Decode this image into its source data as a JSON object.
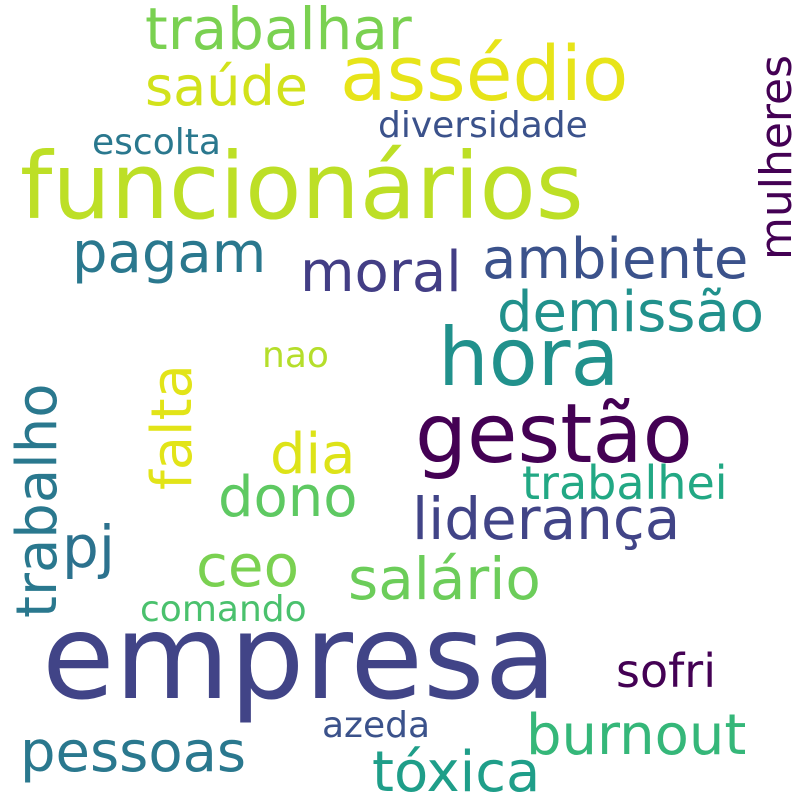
{
  "words": {
    "funcionarios": {
      "text": "funcionários",
      "color": "#bddf26"
    },
    "empresa": {
      "text": "empresa",
      "color": "#414487"
    },
    "gestao": {
      "text": "gestão",
      "color": "#440154"
    },
    "hora": {
      "text": "hora",
      "color": "#21918c"
    },
    "assedio": {
      "text": "assédio",
      "color": "#e7e419"
    },
    "trabalhar": {
      "text": "trabalhar",
      "color": "#7ad151"
    },
    "saude": {
      "text": "saúde",
      "color": "#d2e21b"
    },
    "diversidade": {
      "text": "diversidade",
      "color": "#3b528b"
    },
    "escolta": {
      "text": "escolta",
      "color": "#2a788e"
    },
    "mulheres": {
      "text": "mulheres",
      "color": "#440154"
    },
    "pagam": {
      "text": "pagam",
      "color": "#2a788e"
    },
    "moral": {
      "text": "moral",
      "color": "#433e85"
    },
    "ambiente": {
      "text": "ambiente",
      "color": "#3b528b"
    },
    "demissao": {
      "text": "demissão",
      "color": "#21918c"
    },
    "trabalho": {
      "text": "trabalho",
      "color": "#2a788e"
    },
    "falta": {
      "text": "falta",
      "color": "#e2e418"
    },
    "nao": {
      "text": "nao",
      "color": "#b5de2b"
    },
    "dia": {
      "text": "dia",
      "color": "#dde318"
    },
    "dono": {
      "text": "dono",
      "color": "#5ec962"
    },
    "trabalhei": {
      "text": "trabalhei",
      "color": "#22a884"
    },
    "lideranca": {
      "text": "liderança",
      "color": "#414487"
    },
    "pj": {
      "text": "pj",
      "color": "#2c728e"
    },
    "ceo": {
      "text": "ceo",
      "color": "#7ad151"
    },
    "salario": {
      "text": "salário",
      "color": "#6ccd5a"
    },
    "comando": {
      "text": "comando",
      "color": "#4ac16d"
    },
    "sofri": {
      "text": "sofri",
      "color": "#440154"
    },
    "azeda": {
      "text": "azeda",
      "color": "#3b528b"
    },
    "burnout": {
      "text": "burnout",
      "color": "#35b779"
    },
    "pessoas": {
      "text": "pessoas",
      "color": "#2a788e"
    },
    "toxica": {
      "text": "tóxica",
      "color": "#1f9e89"
    }
  }
}
